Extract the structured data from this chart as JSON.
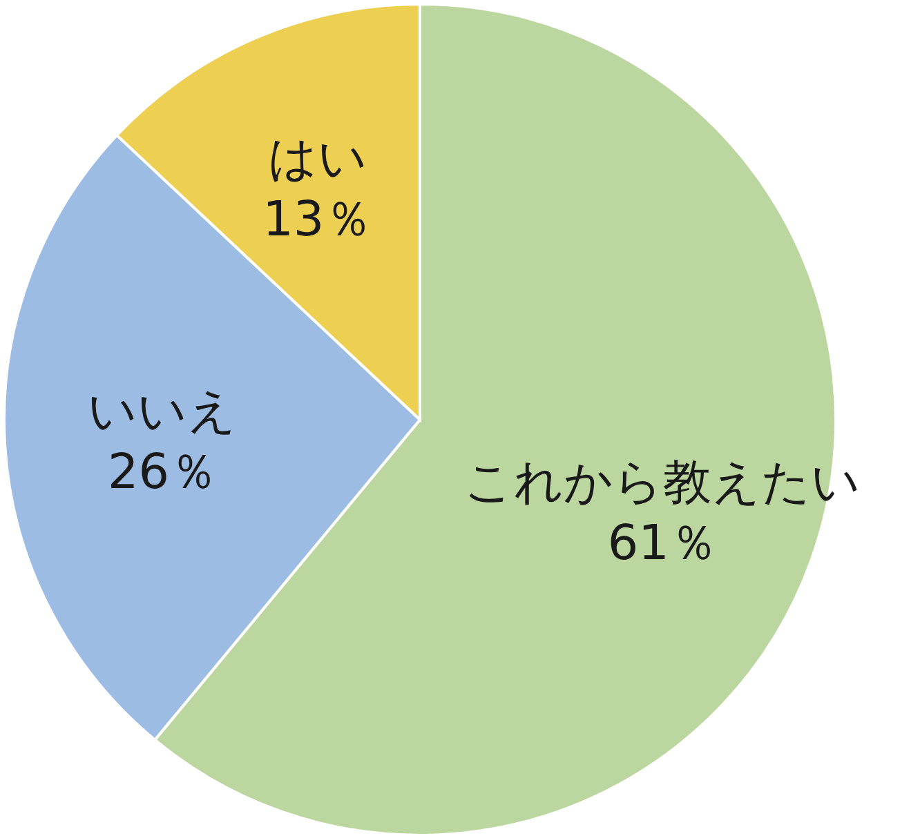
{
  "chart_data": {
    "type": "pie",
    "categories": [
      "これから教えたい",
      "いいえ",
      "はい"
    ],
    "values": [
      61,
      26,
      13
    ],
    "value_labels": [
      "61％",
      "26％",
      "13％"
    ],
    "colors": [
      "#bcd69f",
      "#9dbce4",
      "#edcf52"
    ]
  }
}
